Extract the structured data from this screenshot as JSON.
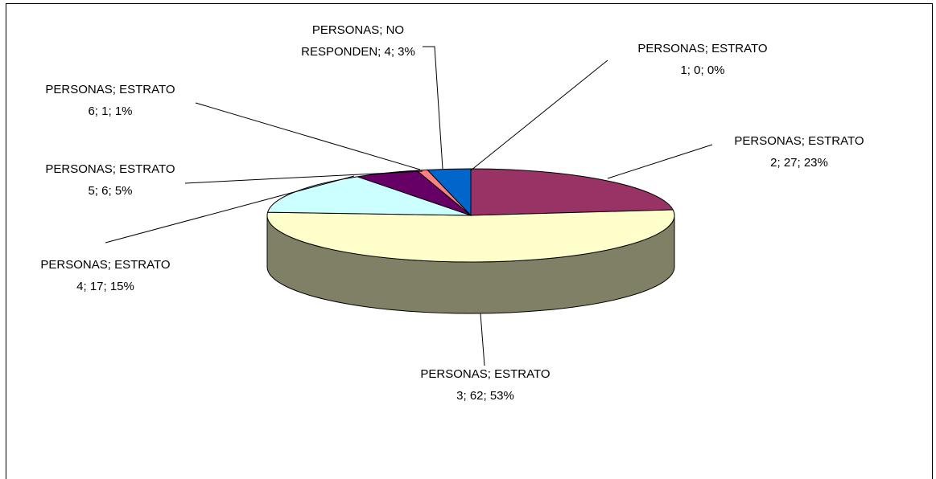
{
  "chart_data": {
    "type": "pie",
    "values": [
      0,
      27,
      62,
      17,
      6,
      1,
      4
    ],
    "value_labels": [
      "PERSONAS; ESTRATO 1; 0; 0%",
      "PERSONAS; ESTRATO 2; 27; 23%",
      "PERSONAS; ESTRATO 3; 62; 53%",
      "PERSONAS; ESTRATO 4; 17; 15%",
      "PERSONAS; ESTRATO 5; 6; 5%",
      "PERSONAS; ESTRATO 6; 1; 1%",
      "PERSONAS; NO RESPONDEN; 4; 3%"
    ],
    "colors": [
      "#9999ff",
      "#993366",
      "#ffffcc",
      "#ccffff",
      "#660066",
      "#ff8080",
      "#0066cc"
    ],
    "three_d": true
  }
}
